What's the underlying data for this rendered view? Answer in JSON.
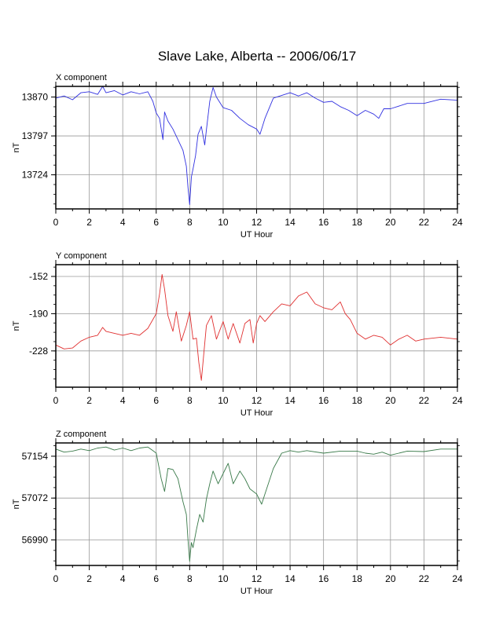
{
  "title": "Slave Lake, Alberta -- 2006/06/17",
  "chart_data": [
    {
      "type": "line",
      "panel_label": "X component",
      "xlabel": "UT Hour",
      "ylabel": "nT",
      "xlim": [
        0,
        24
      ],
      "ylim": [
        13660,
        13890
      ],
      "x_ticks": [
        "0",
        "2",
        "4",
        "6",
        "8",
        "10",
        "12",
        "14",
        "16",
        "18",
        "20",
        "22",
        "24"
      ],
      "y_ticks": [
        13724,
        13797,
        13870
      ],
      "color": "#3030e0",
      "grid": true,
      "x": [
        0,
        0.5,
        1,
        1.5,
        2,
        2.5,
        2.8,
        3,
        3.5,
        4,
        4.5,
        5,
        5.5,
        5.8,
        6,
        6.2,
        6.4,
        6.5,
        6.7,
        7,
        7.3,
        7.6,
        7.8,
        7.9,
        8,
        8.1,
        8.2,
        8.35,
        8.5,
        8.7,
        8.9,
        9,
        9.2,
        9.4,
        9.6,
        10,
        10.5,
        11,
        11.5,
        12,
        12.2,
        12.5,
        13,
        14,
        14.5,
        15,
        15.5,
        16,
        16.5,
        17,
        17.5,
        18,
        18.5,
        19,
        19.3,
        19.6,
        20,
        21,
        22,
        23,
        24
      ],
      "y": [
        13868,
        13872,
        13865,
        13878,
        13880,
        13875,
        13890,
        13878,
        13882,
        13874,
        13880,
        13876,
        13880,
        13862,
        13840,
        13830,
        13790,
        13842,
        13825,
        13810,
        13790,
        13770,
        13740,
        13700,
        13668,
        13720,
        13735,
        13760,
        13800,
        13815,
        13780,
        13808,
        13862,
        13888,
        13870,
        13850,
        13845,
        13830,
        13818,
        13810,
        13800,
        13830,
        13868,
        13878,
        13872,
        13878,
        13868,
        13860,
        13862,
        13852,
        13845,
        13835,
        13845,
        13838,
        13830,
        13848,
        13848,
        13858,
        13858,
        13866,
        13864
      ]
    },
    {
      "type": "line",
      "panel_label": "Y component",
      "xlabel": "UT Hour",
      "ylabel": "nT",
      "xlim": [
        0,
        24
      ],
      "ylim": [
        -265,
        -140
      ],
      "x_ticks": [
        "0",
        "2",
        "4",
        "6",
        "8",
        "10",
        "12",
        "14",
        "16",
        "18",
        "20",
        "22",
        "24"
      ],
      "y_ticks": [
        -152,
        -190,
        -228
      ],
      "color": "#e03030",
      "grid": true,
      "x": [
        0,
        0.5,
        1,
        1.5,
        2,
        2.5,
        2.8,
        3,
        3.5,
        4,
        4.5,
        5,
        5.5,
        6,
        6.2,
        6.35,
        6.5,
        6.7,
        7,
        7.2,
        7.5,
        7.8,
        8,
        8.2,
        8.4,
        8.55,
        8.7,
        8.85,
        9,
        9.3,
        9.6,
        10,
        10.3,
        10.6,
        11,
        11.3,
        11.6,
        11.8,
        12,
        12.2,
        12.5,
        13,
        13.5,
        14,
        14.5,
        15,
        15.5,
        16,
        16.5,
        17,
        17.3,
        17.6,
        18,
        18.5,
        19,
        19.5,
        20,
        20.5,
        21,
        21.5,
        22,
        23,
        24
      ],
      "y": [
        -222,
        -226,
        -225,
        -218,
        -214,
        -212,
        -204,
        -208,
        -210,
        -212,
        -210,
        -212,
        -205,
        -190,
        -170,
        -150,
        -165,
        -192,
        -208,
        -188,
        -218,
        -202,
        -188,
        -216,
        -215,
        -240,
        -258,
        -230,
        -202,
        -192,
        -216,
        -198,
        -216,
        -200,
        -220,
        -200,
        -196,
        -220,
        -200,
        -192,
        -198,
        -188,
        -180,
        -182,
        -172,
        -168,
        -180,
        -184,
        -186,
        -178,
        -190,
        -196,
        -210,
        -216,
        -212,
        -214,
        -222,
        -216,
        -212,
        -218,
        -216,
        -214,
        -216
      ]
    },
    {
      "type": "line",
      "panel_label": "Z component",
      "xlabel": "UT Hour",
      "ylabel": "nT",
      "xlim": [
        0,
        24
      ],
      "ylim": [
        56940,
        57180
      ],
      "x_ticks": [
        "0",
        "2",
        "4",
        "6",
        "8",
        "10",
        "12",
        "14",
        "16",
        "18",
        "20",
        "22",
        "24"
      ],
      "y_ticks": [
        56990,
        57072,
        57154
      ],
      "color": "#3a7a4a",
      "grid": true,
      "x": [
        0,
        0.5,
        1,
        1.5,
        2,
        2.5,
        3,
        3.5,
        4,
        4.5,
        5,
        5.5,
        5.8,
        6,
        6.3,
        6.5,
        6.7,
        7,
        7.3,
        7.6,
        7.8,
        7.9,
        8,
        8.1,
        8.2,
        8.4,
        8.6,
        8.8,
        9,
        9.2,
        9.4,
        9.7,
        10,
        10.3,
        10.6,
        11,
        11.3,
        11.6,
        12,
        12.3,
        12.5,
        13,
        13.5,
        14,
        14.5,
        15,
        16,
        17,
        18,
        18.5,
        19,
        19.5,
        20,
        20.5,
        21,
        22,
        23,
        24
      ],
      "y": [
        57168,
        57162,
        57164,
        57168,
        57165,
        57170,
        57172,
        57166,
        57170,
        57165,
        57170,
        57172,
        57165,
        57160,
        57110,
        57085,
        57130,
        57128,
        57110,
        57065,
        57040,
        56990,
        56948,
        56985,
        56975,
        57010,
        57040,
        57025,
        57070,
        57100,
        57125,
        57100,
        57120,
        57140,
        57100,
        57125,
        57110,
        57090,
        57080,
        57060,
        57080,
        57130,
        57160,
        57165,
        57162,
        57165,
        57160,
        57164,
        57164,
        57160,
        57158,
        57162,
        57156,
        57160,
        57164,
        57163,
        57168,
        57168
      ]
    }
  ]
}
